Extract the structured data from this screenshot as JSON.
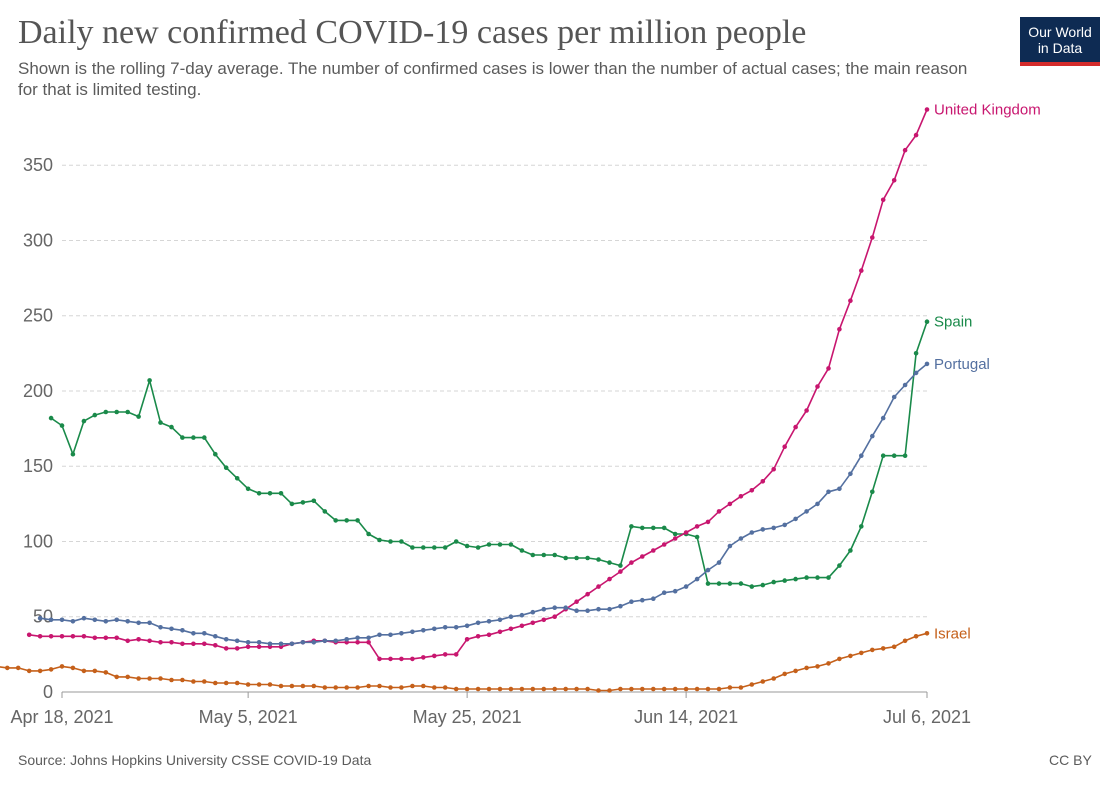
{
  "header": {
    "title": "Daily new confirmed COVID-19 cases per million people",
    "subtitle": "Shown is the rolling 7-day average. The number of confirmed cases is lower than the number of actual cases; the main reason for that is limited testing.",
    "logo_line1": "Our World",
    "logo_line2": "in Data"
  },
  "footer": {
    "source": "Source: Johns Hopkins University CSSE COVID-19 Data",
    "license": "CC BY"
  },
  "chart_data": {
    "type": "line",
    "title": "Daily new confirmed COVID-19 cases per million people",
    "x_start": "2021-04-18",
    "x_end": "2021-07-06",
    "x_ticks": [
      "Apr 18, 2021",
      "May 5, 2021",
      "May 25, 2021",
      "Jun 14, 2021",
      "Jul 6, 2021"
    ],
    "x_tick_dates": [
      "2021-04-18",
      "2021-05-05",
      "2021-05-25",
      "2021-06-14",
      "2021-07-06"
    ],
    "y_ticks": [
      0,
      50,
      100,
      150,
      200,
      250,
      300,
      350
    ],
    "ylim": [
      0,
      390
    ],
    "grid": "horizontal-dashed",
    "legend": "inline-right",
    "series": [
      {
        "name": "Spain",
        "color": "#1a8a4a",
        "values": [
          182,
          177,
          158,
          180,
          184,
          186,
          186,
          186,
          183,
          207,
          179,
          176,
          169,
          169,
          169,
          158,
          149,
          142,
          135,
          132,
          132,
          132,
          125,
          126,
          127,
          120,
          114,
          114,
          114,
          105,
          101,
          100,
          100,
          96,
          96,
          96,
          96,
          100,
          97,
          96,
          98,
          98,
          98,
          94,
          91,
          91,
          91,
          89,
          89,
          89,
          88,
          86,
          84,
          110,
          109,
          109,
          109,
          105,
          105,
          103,
          72,
          72,
          72,
          72,
          70,
          71,
          73,
          74,
          75,
          76,
          76,
          76,
          84,
          94,
          110,
          133,
          157,
          157,
          157,
          225,
          246
        ]
      },
      {
        "name": "United Kingdom",
        "color": "#c8166f",
        "values": [
          38,
          37,
          37,
          37,
          37,
          37,
          36,
          36,
          36,
          34,
          35,
          34,
          33,
          33,
          32,
          32,
          32,
          31,
          29,
          29,
          30,
          30,
          30,
          30,
          32,
          33,
          34,
          34,
          33,
          33,
          33,
          33,
          22,
          22,
          22,
          22,
          23,
          24,
          25,
          25,
          35,
          37,
          38,
          40,
          42,
          44,
          46,
          48,
          50,
          55,
          60,
          65,
          70,
          75,
          80,
          86,
          90,
          94,
          98,
          102,
          106,
          110,
          113,
          120,
          125,
          130,
          134,
          140,
          148,
          163,
          176,
          187,
          203,
          215,
          241,
          260,
          280,
          302,
          327,
          340,
          360,
          370,
          387
        ]
      },
      {
        "name": "Portugal",
        "color": "#5470a0",
        "values": [
          49,
          48,
          48,
          47,
          49,
          48,
          47,
          48,
          47,
          46,
          46,
          43,
          42,
          41,
          39,
          39,
          37,
          35,
          34,
          33,
          33,
          32,
          32,
          32,
          33,
          33,
          34,
          34,
          35,
          36,
          36,
          38,
          38,
          39,
          40,
          41,
          42,
          43,
          43,
          44,
          46,
          47,
          48,
          50,
          51,
          53,
          55,
          56,
          56,
          54,
          54,
          55,
          55,
          57,
          60,
          61,
          62,
          66,
          67,
          70,
          75,
          81,
          86,
          97,
          102,
          106,
          108,
          109,
          111,
          115,
          120,
          125,
          133,
          135,
          145,
          157,
          170,
          182,
          196,
          204,
          212,
          218
        ]
      },
      {
        "name": "Israel",
        "color": "#c5601a",
        "values": [
          17,
          16,
          16,
          14,
          14,
          15,
          17,
          16,
          14,
          14,
          13,
          10,
          10,
          9,
          9,
          9,
          8,
          8,
          7,
          7,
          6,
          6,
          6,
          5,
          5,
          5,
          4,
          4,
          4,
          4,
          3,
          3,
          3,
          3,
          4,
          4,
          3,
          3,
          4,
          4,
          3,
          3,
          2,
          2,
          2,
          2,
          2,
          2,
          2,
          2,
          2,
          2,
          2,
          2,
          2,
          1,
          1,
          2,
          2,
          2,
          2,
          2,
          2,
          2,
          2,
          2,
          2,
          3,
          3,
          5,
          7,
          9,
          12,
          14,
          16,
          17,
          19,
          22,
          24,
          26,
          28,
          29,
          30,
          34,
          37,
          39
        ]
      }
    ]
  }
}
